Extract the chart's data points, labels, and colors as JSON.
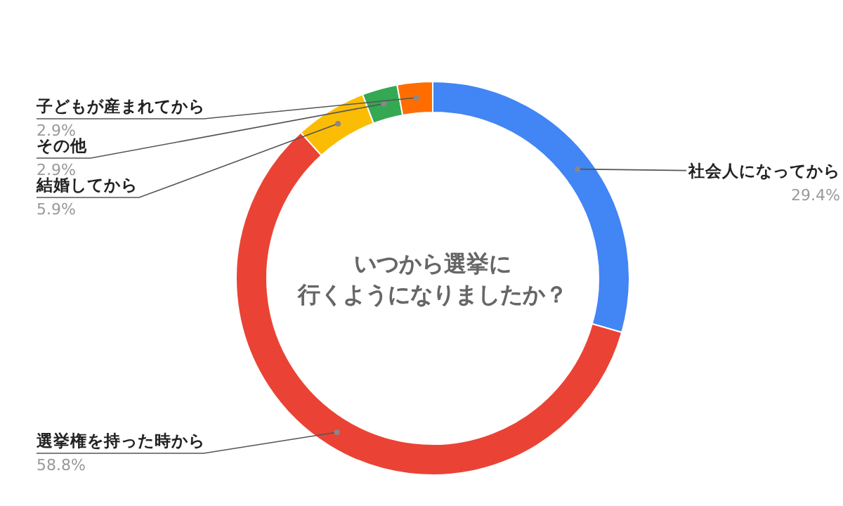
{
  "chart_data": {
    "type": "donut",
    "title": "いつから選挙に行くようになりましたか？",
    "categories": [
      "社会人になってから",
      "選挙権を持った時から",
      "結婚してから",
      "その他",
      "子どもが産まれてから"
    ],
    "values": [
      29.4,
      58.8,
      5.9,
      2.9,
      2.9
    ],
    "colors": [
      "#4285f4",
      "#ea4335",
      "#fbbc04",
      "#34a853",
      "#ff6d01"
    ],
    "value_labels": [
      "29.4%",
      "58.8%",
      "5.9%",
      "2.9%",
      "2.9%"
    ],
    "legend": false
  }
}
